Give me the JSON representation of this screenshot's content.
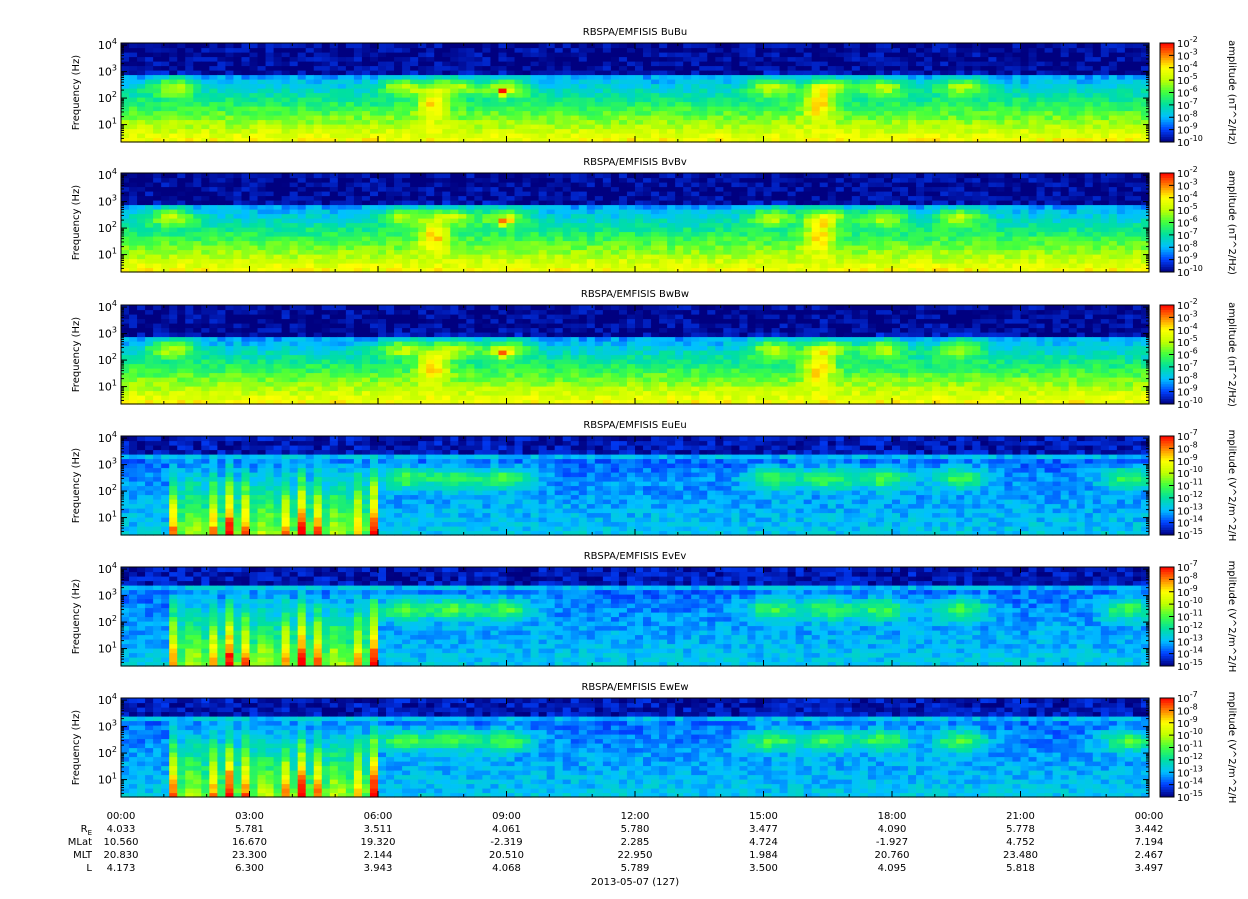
{
  "chart_data": [
    {
      "type": "heatmap",
      "title": "RBSPA/EMFISIS  BuBu",
      "ylabel": "Frequency (Hz)",
      "yscale": "log",
      "ylim": [
        2.2,
        12000
      ],
      "yticks": [
        "10^1",
        "10^2",
        "10^3",
        "10^4"
      ],
      "colorbar_label": "amplitude (nT^2/Hz)",
      "colorbar_ticks": [
        "10^-2",
        "10^-3",
        "10^-4",
        "10^-5",
        "10^-6",
        "10^-7",
        "10^-8",
        "10^-9",
        "10^-10"
      ],
      "colorbar_range": [
        -10,
        -2
      ],
      "colormap": [
        "#000080",
        "#0040ff",
        "#00c0ff",
        "#00e0a0",
        "#40ff40",
        "#c0ff00",
        "#ffff00",
        "#ff8000",
        "#ff0000"
      ]
    },
    {
      "type": "heatmap",
      "title": "RBSPA/EMFISIS  BvBv",
      "ylabel": "Frequency (Hz)",
      "yscale": "log",
      "ylim": [
        2.2,
        12000
      ],
      "yticks": [
        "10^1",
        "10^2",
        "10^3",
        "10^4"
      ],
      "colorbar_label": "amplitude (nT^2/Hz)",
      "colorbar_ticks": [
        "10^-2",
        "10^-3",
        "10^-4",
        "10^-5",
        "10^-6",
        "10^-7",
        "10^-8",
        "10^-9",
        "10^-10"
      ],
      "colorbar_range": [
        -10,
        -2
      ],
      "colormap": [
        "#000080",
        "#0040ff",
        "#00c0ff",
        "#00e0a0",
        "#40ff40",
        "#c0ff00",
        "#ffff00",
        "#ff8000",
        "#ff0000"
      ]
    },
    {
      "type": "heatmap",
      "title": "RBSPA/EMFISIS  BwBw",
      "ylabel": "Frequency (Hz)",
      "yscale": "log",
      "ylim": [
        2.2,
        12000
      ],
      "yticks": [
        "10^1",
        "10^2",
        "10^3",
        "10^4"
      ],
      "colorbar_label": "amplitude (nT^2/Hz)",
      "colorbar_ticks": [
        "10^-2",
        "10^-3",
        "10^-4",
        "10^-5",
        "10^-6",
        "10^-7",
        "10^-8",
        "10^-9",
        "10^-10"
      ],
      "colorbar_range": [
        -10,
        -2
      ],
      "colormap": [
        "#000080",
        "#0040ff",
        "#00c0ff",
        "#00e0a0",
        "#40ff40",
        "#c0ff00",
        "#ffff00",
        "#ff8000",
        "#ff0000"
      ]
    },
    {
      "type": "heatmap",
      "title": "RBSPA/EMFISIS  EuEu",
      "ylabel": "Frequency (Hz)",
      "yscale": "log",
      "ylim": [
        2.2,
        12000
      ],
      "yticks": [
        "10^1",
        "10^2",
        "10^3",
        "10^4"
      ],
      "colorbar_label": "mplitude (V^2/m^2/H",
      "colorbar_ticks": [
        "10^-7",
        "10^-8",
        "10^-9",
        "10^-10",
        "10^-11",
        "10^-12",
        "10^-13",
        "10^-14",
        "10^-15"
      ],
      "colorbar_range": [
        -15,
        -7
      ],
      "colormap": [
        "#000080",
        "#0040ff",
        "#00c0ff",
        "#00e0a0",
        "#40ff40",
        "#c0ff00",
        "#ffff00",
        "#ff8000",
        "#ff0000"
      ]
    },
    {
      "type": "heatmap",
      "title": "RBSPA/EMFISIS  EvEv",
      "ylabel": "Frequency (Hz)",
      "yscale": "log",
      "ylim": [
        2.2,
        12000
      ],
      "yticks": [
        "10^1",
        "10^2",
        "10^3",
        "10^4"
      ],
      "colorbar_label": "mplitude (V^2/m^2/H",
      "colorbar_ticks": [
        "10^-7",
        "10^-8",
        "10^-9",
        "10^-10",
        "10^-11",
        "10^-12",
        "10^-13",
        "10^-14",
        "10^-15"
      ],
      "colorbar_range": [
        -15,
        -7
      ],
      "colormap": [
        "#000080",
        "#0040ff",
        "#00c0ff",
        "#00e0a0",
        "#40ff40",
        "#c0ff00",
        "#ffff00",
        "#ff8000",
        "#ff0000"
      ]
    },
    {
      "type": "heatmap",
      "title": "RBSPA/EMFISIS  EwEw",
      "ylabel": "Frequency (Hz)",
      "yscale": "log",
      "ylim": [
        2.2,
        12000
      ],
      "yticks": [
        "10^1",
        "10^2",
        "10^3",
        "10^4"
      ],
      "colorbar_label": "mplitude (V^2/m^2/H",
      "colorbar_ticks": [
        "10^-7",
        "10^-8",
        "10^-9",
        "10^-10",
        "10^-11",
        "10^-12",
        "10^-13",
        "10^-14",
        "10^-15"
      ],
      "colorbar_range": [
        -15,
        -7
      ],
      "colormap": [
        "#000080",
        "#0040ff",
        "#00c0ff",
        "#00e0a0",
        "#40ff40",
        "#c0ff00",
        "#ffff00",
        "#ff8000",
        "#ff0000"
      ]
    }
  ],
  "x_axis": {
    "time_labels": [
      "00:00",
      "03:00",
      "06:00",
      "09:00",
      "12:00",
      "15:00",
      "18:00",
      "21:00",
      "00:00"
    ],
    "ephemeris": [
      {
        "label": "RE",
        "values": [
          "4.033",
          "5.781",
          "3.511",
          "4.061",
          "5.780",
          "3.477",
          "4.090",
          "5.778",
          "3.442"
        ]
      },
      {
        "label": "MLat",
        "values": [
          "10.560",
          "16.670",
          "19.320",
          "-2.319",
          "2.285",
          "4.724",
          "-1.927",
          "4.752",
          "7.194"
        ]
      },
      {
        "label": "MLT",
        "values": [
          "20.830",
          "23.300",
          "2.144",
          "20.510",
          "22.950",
          "1.984",
          "20.760",
          "23.480",
          "2.467"
        ]
      },
      {
        "label": "L",
        "values": [
          "4.173",
          "6.300",
          "3.943",
          "4.068",
          "5.789",
          "3.500",
          "4.095",
          "5.818",
          "3.497"
        ]
      }
    ],
    "date_label": "2013-05-07 (127)"
  }
}
